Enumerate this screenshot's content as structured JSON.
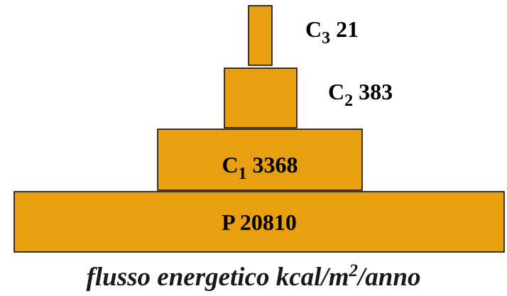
{
  "levels": [
    {
      "name": "P",
      "value": 20810
    },
    {
      "name": "C",
      "subscript": "1",
      "value": 3368
    },
    {
      "name": "C",
      "subscript": "2",
      "value": 383
    },
    {
      "name": "C",
      "subscript": "3",
      "value": 21
    }
  ],
  "caption": {
    "text": "flusso energetico kcal/m",
    "superscript": "2",
    "suffix": "/anno"
  }
}
